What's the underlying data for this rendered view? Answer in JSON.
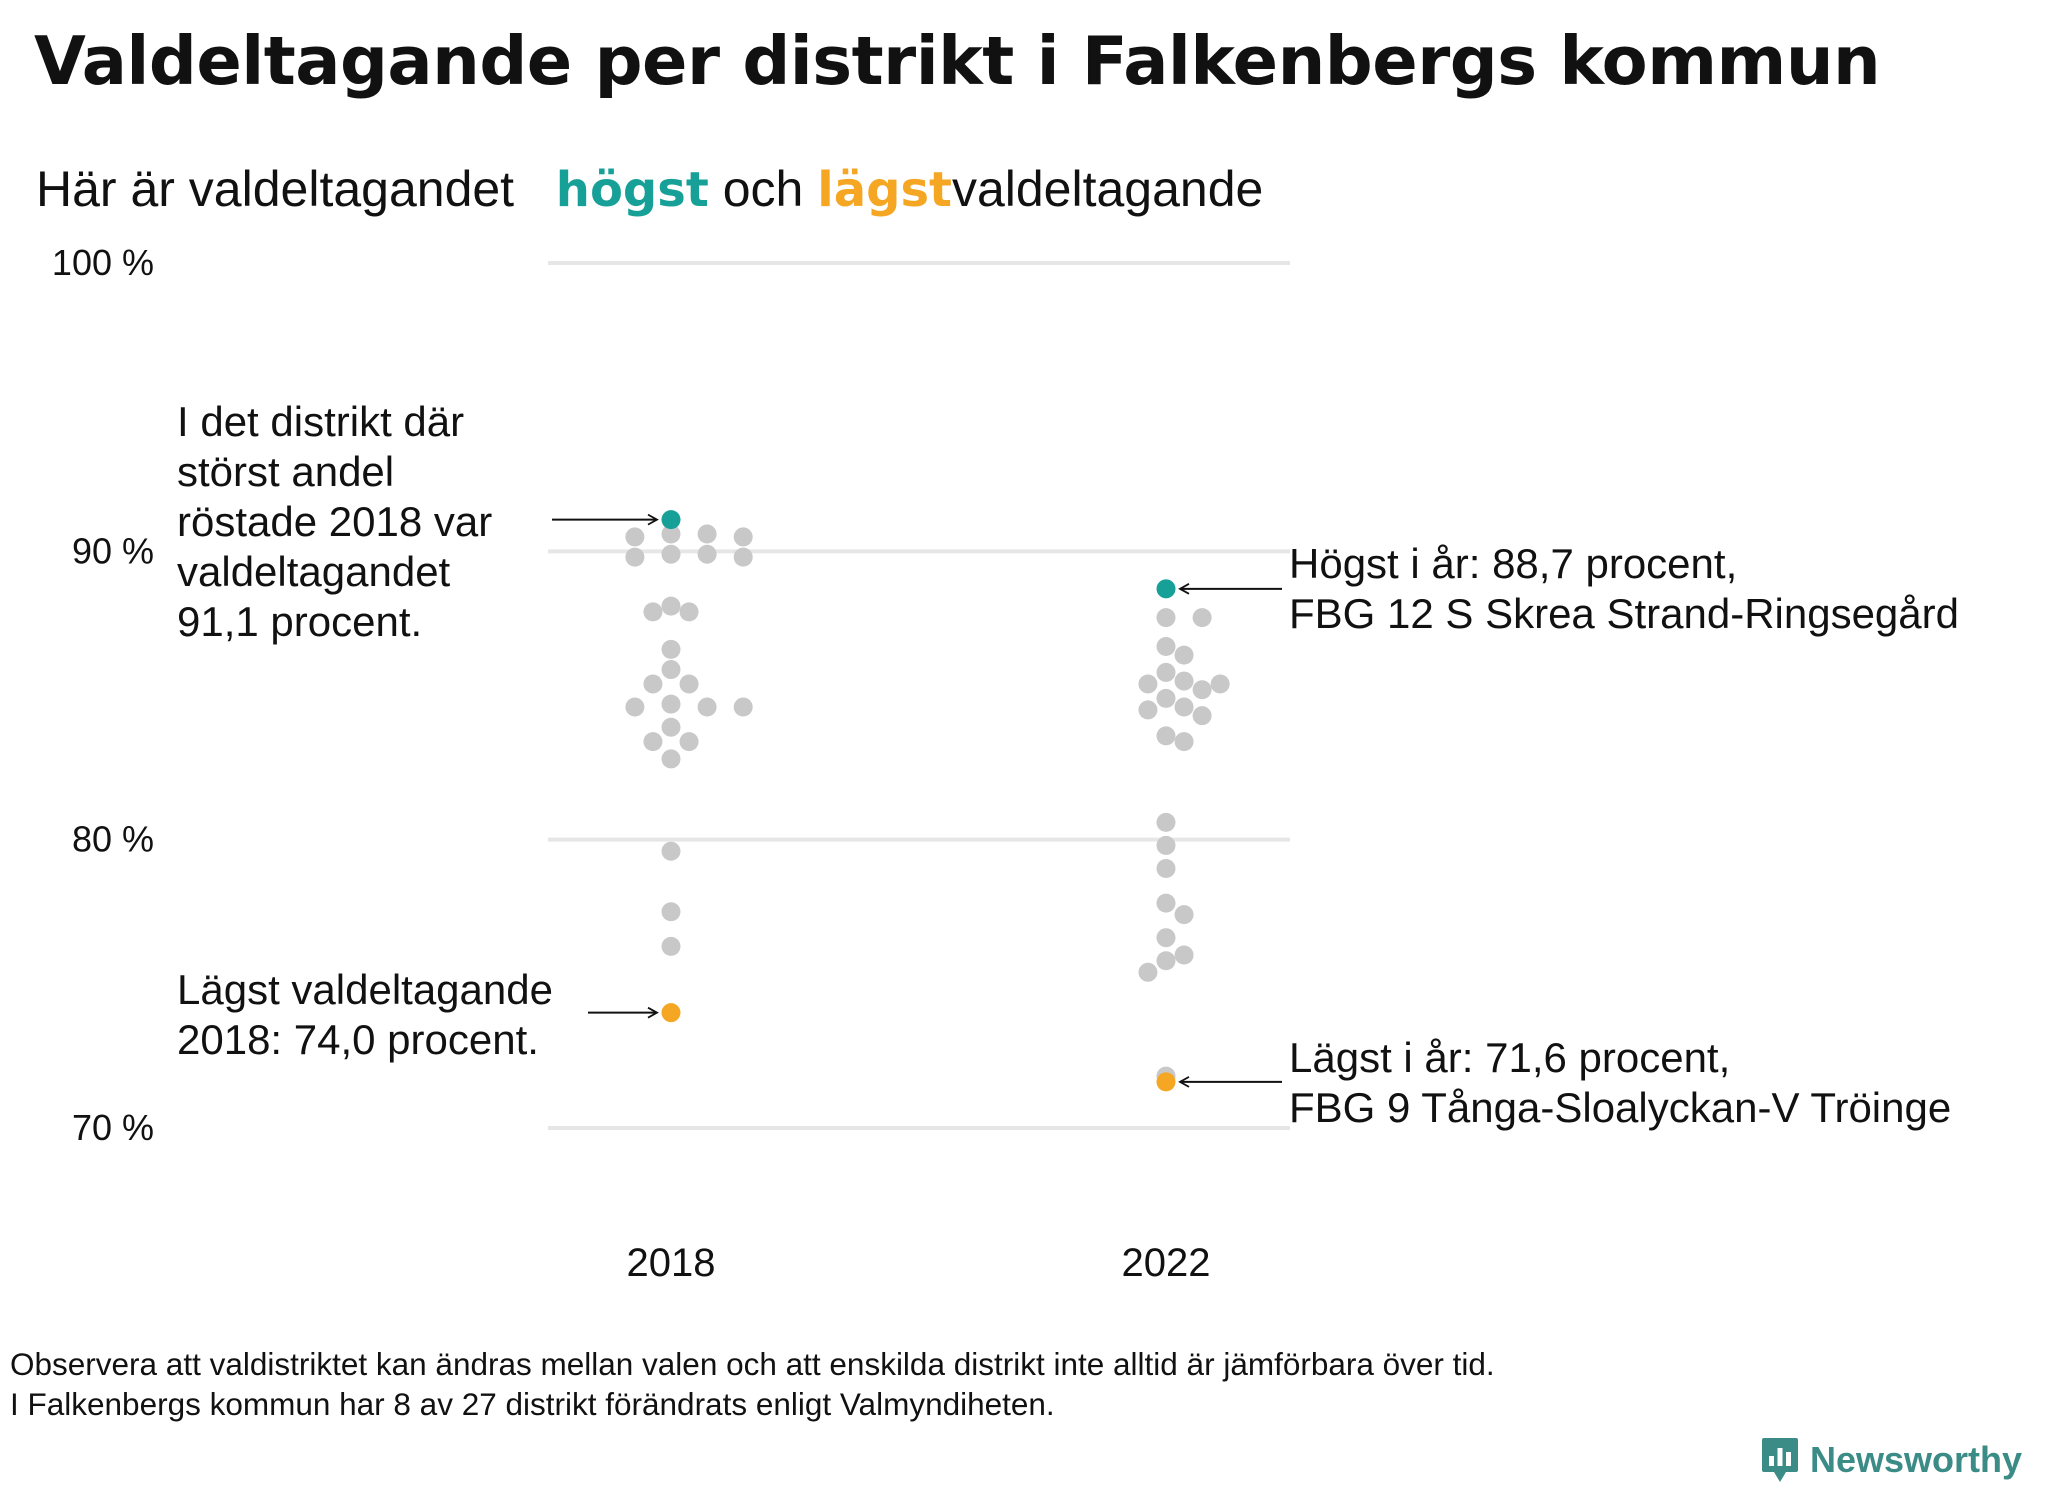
{
  "title": "Valdeltagande per distrikt i Falkenbergs kommun",
  "subtitle": {
    "prefix": "Här är valdeltagandet",
    "high_word": "högst",
    "middle": "och",
    "low_word": "lägst",
    "suffix": "valdeltagande"
  },
  "colors": {
    "high": "#16a097",
    "low": "#f5a623",
    "dots": "#c8c8c8",
    "grid": "#e6e6e6",
    "text": "#111111",
    "brand": "#3b8c86"
  },
  "chart_data": {
    "type": "scatter",
    "title": "Valdeltagande per distrikt i Falkenbergs kommun",
    "xlabel": "",
    "ylabel": "",
    "categories": [
      "2018",
      "2022"
    ],
    "ylim": [
      70,
      100
    ],
    "yticks": [
      70,
      80,
      90,
      100
    ],
    "ytick_labels": [
      "70 %",
      "80 %",
      "90 %",
      "100 %"
    ],
    "grid": true,
    "series": [
      {
        "name": "2018",
        "values": [
          90.6,
          90.6,
          90.5,
          90.5,
          89.9,
          89.9,
          89.8,
          89.8,
          88.1,
          87.9,
          87.9,
          86.6,
          85.9,
          85.4,
          85.4,
          84.7,
          84.6,
          84.6,
          84.6,
          83.9,
          83.4,
          83.4,
          82.8,
          79.6,
          77.5,
          76.3
        ],
        "highest": 91.1,
        "lowest": 74.0
      },
      {
        "name": "2022",
        "values": [
          87.7,
          87.7,
          86.7,
          86.4,
          85.8,
          85.5,
          85.4,
          85.4,
          85.2,
          84.9,
          84.6,
          84.5,
          84.3,
          83.6,
          83.4,
          80.6,
          79.8,
          79.0,
          77.8,
          77.4,
          76.6,
          76.0,
          75.8,
          75.4,
          71.8
        ],
        "highest": 88.7,
        "lowest": 71.6
      }
    ],
    "annotations": {
      "top_2018": [
        "I det distrikt där",
        "störst andel",
        "röstade 2018 var",
        "valdeltagandet",
        "91,1 procent."
      ],
      "low_2018": [
        "Lägst valdeltagande",
        "2018: 74,0 procent."
      ],
      "top_2022": [
        "Högst i år: 88,7 procent,",
        "FBG 12 S Skrea Strand-Ringsegård"
      ],
      "low_2022": [
        "Lägst i år: 71,6 procent,",
        "FBG 9 Tånga-Sloalyckan-V Tröinge"
      ]
    }
  },
  "footnote": {
    "line1": "Observera att valdistriktet kan ändras mellan valen och att enskilda distrikt inte alltid är jämförbara över tid.",
    "line2": "I Falkenbergs kommun har 8 av 27 distrikt förändrats enligt Valmyndiheten."
  },
  "brand": {
    "name": "Newsworthy",
    "icon": "newsworthy-logo-icon"
  }
}
